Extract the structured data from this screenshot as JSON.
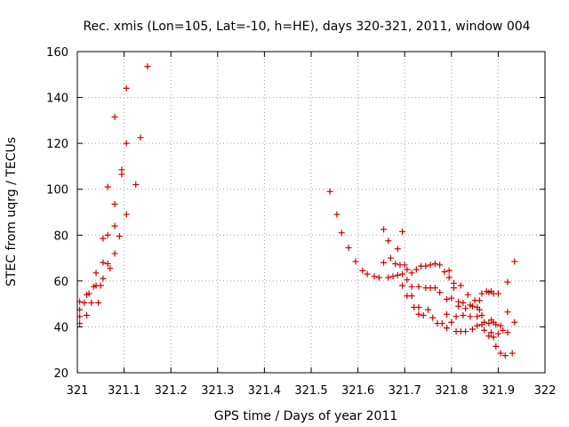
{
  "chart_data": {
    "type": "scatter",
    "title": "Rec. xmis (Lon=105, Lat=-10, h=HE), days 320-321, 2011, window 004",
    "xlabel": "GPS time / Days of year 2011",
    "ylabel": "STEC from uqrg / TECUs",
    "xlim": [
      321,
      322
    ],
    "ylim": [
      20,
      160
    ],
    "xticks": [
      321,
      321.1,
      321.2,
      321.3,
      321.4,
      321.5,
      321.6,
      321.7,
      321.8,
      321.9,
      322
    ],
    "xtick_labels": [
      "321",
      "321.1",
      "321.2",
      "321.3",
      "321.4",
      "321.5",
      "321.6",
      "321.7",
      "321.8",
      "321.9",
      "322"
    ],
    "yticks": [
      20,
      40,
      60,
      80,
      100,
      120,
      140,
      160
    ],
    "ytick_labels": [
      "20",
      "40",
      "60",
      "80",
      "100",
      "120",
      "140",
      "160"
    ],
    "grid": true,
    "marker": "plus",
    "color": "#cc0000",
    "series": [
      {
        "points": [
          [
            321.005,
            41.5
          ],
          [
            321.005,
            44.5
          ],
          [
            321.005,
            47.5
          ],
          [
            321.005,
            51
          ],
          [
            321.015,
            50.5
          ],
          [
            321.02,
            45
          ],
          [
            321.02,
            54
          ],
          [
            321.025,
            54.5
          ],
          [
            321.03,
            50.5
          ],
          [
            321.035,
            57.5
          ],
          [
            321.04,
            63.5
          ],
          [
            321.04,
            58
          ],
          [
            321.045,
            50.5
          ],
          [
            321.05,
            58
          ],
          [
            321.055,
            61
          ],
          [
            321.055,
            68
          ],
          [
            321.055,
            78.5
          ],
          [
            321.065,
            67.5
          ],
          [
            321.065,
            80
          ],
          [
            321.065,
            101
          ],
          [
            321.07,
            65.5
          ],
          [
            321.08,
            72
          ],
          [
            321.08,
            84
          ],
          [
            321.08,
            93.5
          ],
          [
            321.08,
            131.5
          ],
          [
            321.09,
            79.5
          ],
          [
            321.095,
            106.5
          ],
          [
            321.095,
            108.5
          ],
          [
            321.105,
            89
          ],
          [
            321.105,
            120
          ],
          [
            321.105,
            144
          ],
          [
            321.125,
            102
          ],
          [
            321.135,
            122.5
          ],
          [
            321.15,
            153.5
          ],
          [
            321.54,
            99
          ],
          [
            321.555,
            89
          ],
          [
            321.565,
            81
          ],
          [
            321.58,
            74.5
          ],
          [
            321.595,
            68.5
          ],
          [
            321.61,
            64.5
          ],
          [
            321.62,
            63
          ],
          [
            321.635,
            62
          ],
          [
            321.645,
            61.5
          ],
          [
            321.655,
            68
          ],
          [
            321.655,
            82.5
          ],
          [
            321.665,
            61.5
          ],
          [
            321.665,
            77.5
          ],
          [
            321.67,
            70
          ],
          [
            321.675,
            62
          ],
          [
            321.68,
            67.5
          ],
          [
            321.685,
            62.5
          ],
          [
            321.685,
            74
          ],
          [
            321.69,
            67
          ],
          [
            321.695,
            58
          ],
          [
            321.695,
            63
          ],
          [
            321.695,
            81.5
          ],
          [
            321.7,
            67
          ],
          [
            321.705,
            53.5
          ],
          [
            321.705,
            60.5
          ],
          [
            321.705,
            65
          ],
          [
            321.715,
            53.5
          ],
          [
            321.715,
            57.5
          ],
          [
            321.715,
            63.5
          ],
          [
            321.72,
            48.5
          ],
          [
            321.725,
            65
          ],
          [
            321.73,
            45.5
          ],
          [
            321.73,
            48.5
          ],
          [
            321.73,
            57.5
          ],
          [
            321.735,
            66.5
          ],
          [
            321.74,
            45
          ],
          [
            321.745,
            57
          ],
          [
            321.745,
            66.5
          ],
          [
            321.75,
            47.5
          ],
          [
            321.755,
            57
          ],
          [
            321.755,
            67
          ],
          [
            321.76,
            44
          ],
          [
            321.765,
            57
          ],
          [
            321.765,
            67.5
          ],
          [
            321.77,
            41.5
          ],
          [
            321.775,
            55
          ],
          [
            321.775,
            67
          ],
          [
            321.78,
            41.5
          ],
          [
            321.785,
            64
          ],
          [
            321.79,
            39.5
          ],
          [
            321.79,
            45.5
          ],
          [
            321.79,
            52
          ],
          [
            321.795,
            64.5
          ],
          [
            321.795,
            61.5
          ],
          [
            321.8,
            42
          ],
          [
            321.8,
            52.5
          ],
          [
            321.805,
            59
          ],
          [
            321.805,
            57
          ],
          [
            321.81,
            38
          ],
          [
            321.81,
            44.5
          ],
          [
            321.815,
            49
          ],
          [
            321.815,
            51
          ],
          [
            321.82,
            38
          ],
          [
            321.82,
            58
          ],
          [
            321.825,
            45
          ],
          [
            321.825,
            50.5
          ],
          [
            321.83,
            38
          ],
          [
            321.83,
            48
          ],
          [
            321.835,
            54
          ],
          [
            321.84,
            44.5
          ],
          [
            321.84,
            49.5
          ],
          [
            321.845,
            39
          ],
          [
            321.845,
            49
          ],
          [
            321.85,
            51.5
          ],
          [
            321.855,
            40.5
          ],
          [
            321.855,
            44.5
          ],
          [
            321.855,
            48.5
          ],
          [
            321.86,
            47.5
          ],
          [
            321.86,
            51.5
          ],
          [
            321.865,
            41
          ],
          [
            321.865,
            45
          ],
          [
            321.865,
            54.5
          ],
          [
            321.87,
            38.5
          ],
          [
            321.87,
            42
          ],
          [
            321.875,
            55.5
          ],
          [
            321.88,
            36
          ],
          [
            321.88,
            41.5
          ],
          [
            321.88,
            55
          ],
          [
            321.885,
            37.5
          ],
          [
            321.885,
            43
          ],
          [
            321.885,
            55.5
          ],
          [
            321.89,
            35.5
          ],
          [
            321.89,
            42
          ],
          [
            321.89,
            54.5
          ],
          [
            321.895,
            31.5
          ],
          [
            321.895,
            41
          ],
          [
            321.9,
            37
          ],
          [
            321.9,
            54.5
          ],
          [
            321.905,
            40.5
          ],
          [
            321.905,
            28.5
          ],
          [
            321.91,
            38.5
          ],
          [
            321.915,
            27.5
          ],
          [
            321.92,
            37.5
          ],
          [
            321.92,
            46.5
          ],
          [
            321.92,
            59.5
          ],
          [
            321.93,
            28.5
          ],
          [
            321.935,
            42
          ],
          [
            321.935,
            68.5
          ]
        ]
      }
    ]
  }
}
